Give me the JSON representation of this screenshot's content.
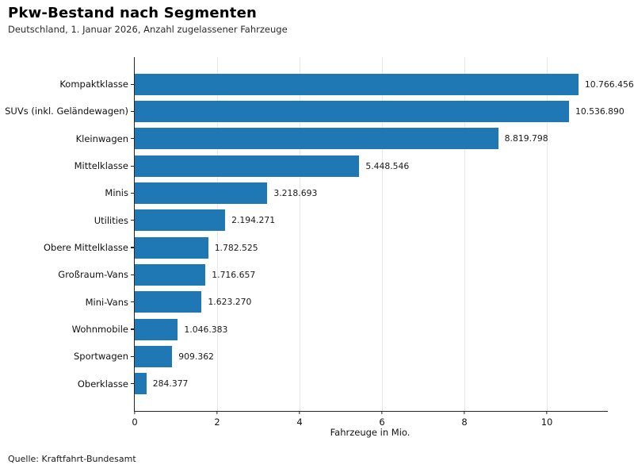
{
  "title": "Pkw-Bestand nach Segmenten",
  "subtitle": "Deutschland, 1. Januar 2026, Anzahl zugelassener Fahrzeuge",
  "source": "Quelle: Kraftfahrt-Bundesamt",
  "chart_data": {
    "type": "bar",
    "orientation": "horizontal",
    "title": "Pkw-Bestand nach Segmenten",
    "subtitle": "Deutschland, 1. Januar 2026, Anzahl zugelassener Fahrzeuge",
    "xlabel": "Fahrzeuge in Mio.",
    "ylabel": "",
    "categories": [
      "Kompaktklasse",
      "SUVs (inkl. Geländewagen)",
      "Kleinwagen",
      "Mittelklasse",
      "Minis",
      "Utilities",
      "Obere Mittelklasse",
      "Großraum-Vans",
      "Mini-Vans",
      "Wohnmobile",
      "Sportwagen",
      "Oberklasse"
    ],
    "values": [
      10766456,
      10536890,
      8819798,
      5448546,
      3218693,
      2194271,
      1782525,
      1716657,
      1623270,
      1046383,
      909362,
      284377
    ],
    "value_labels": [
      "10.766.456",
      "10.536.890",
      "8.819.798",
      "5.448.546",
      "3.218.693",
      "2.194.271",
      "1.782.525",
      "1.716.657",
      "1.623.270",
      "1.046.383",
      "909.362",
      "284.377"
    ],
    "x_ticks": [
      0,
      2,
      4,
      6,
      8,
      10
    ],
    "xlim_mio": [
      0,
      11.48
    ],
    "grid": true,
    "grid_color": "#e8e8e8",
    "bar_color": "#1f77b4",
    "axis_color": "#262626",
    "legend": "none"
  }
}
